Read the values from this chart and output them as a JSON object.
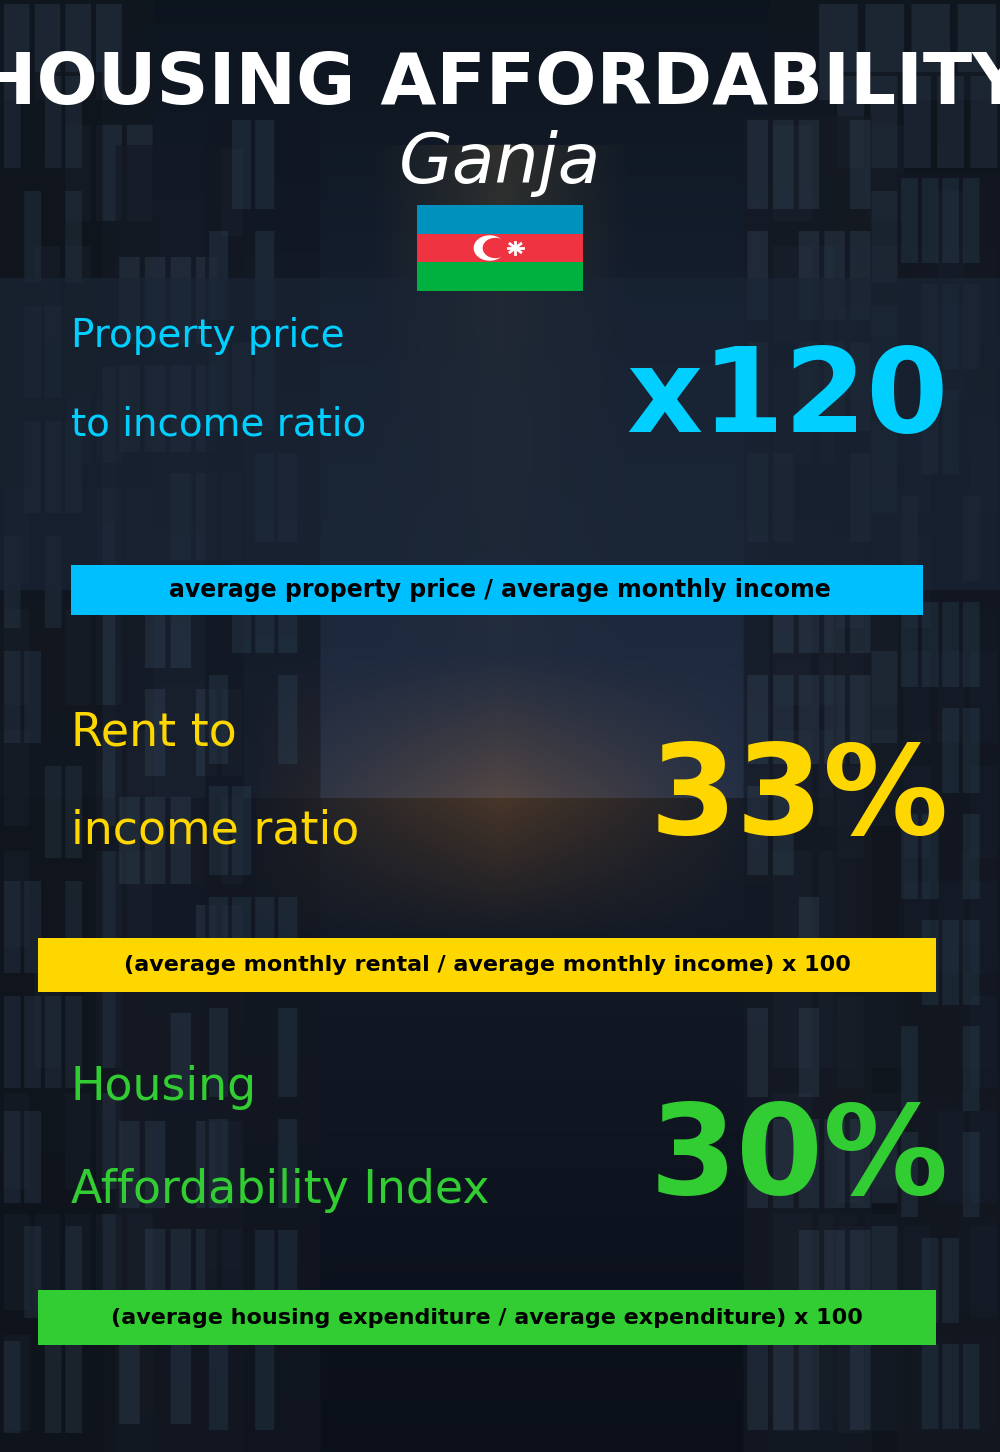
{
  "title_line1": "HOUSING AFFORDABILITY",
  "title_line2": "Ganja",
  "bg_color": "#0d1b2a",
  "section1_label_line1": "Property price",
  "section1_label_line2": "to income ratio",
  "section1_value": "x120",
  "section1_label_color": "#00cfff",
  "section1_value_color": "#00cfff",
  "section1_formula": "average property price / average monthly income",
  "section1_formula_bg": "#00bfff",
  "section2_label_line1": "Rent to",
  "section2_label_line2": "income ratio",
  "section2_value": "33%",
  "section2_label_color": "#ffd700",
  "section2_value_color": "#ffd700",
  "section2_formula": "(average monthly rental / average monthly income) x 100",
  "section2_formula_bg": "#ffd700",
  "section3_label_line1": "Housing",
  "section3_label_line2": "Affordability Index",
  "section3_value": "30%",
  "section3_label_color": "#32cd32",
  "section3_value_color": "#32cd32",
  "section3_formula": "(average housing expenditure / average expenditure) x 100",
  "section3_formula_bg": "#32cd32",
  "title_color": "#ffffff",
  "subtitle_color": "#ffffff",
  "formula_text_color": "#000000",
  "section_overlay_color": "#1a2535",
  "section_overlay_alpha": 0.65,
  "fig_width": 10.0,
  "fig_height": 14.52,
  "dpi": 100
}
